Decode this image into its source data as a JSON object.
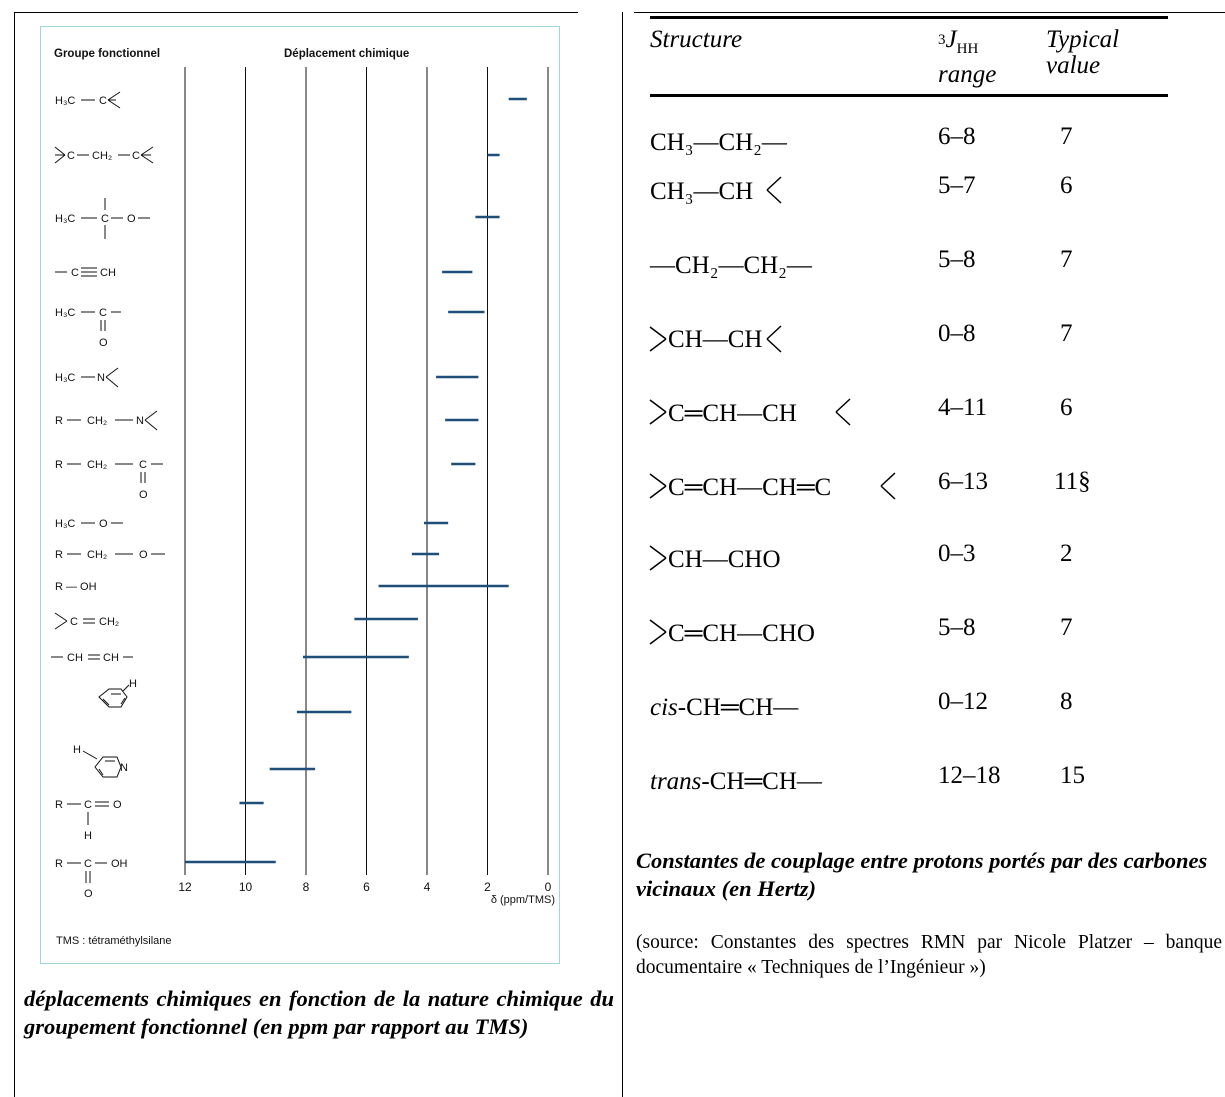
{
  "left": {
    "chart_data": {
      "type": "range-bar",
      "header_left": "Groupe fonctionnel",
      "header_right": "Déplacement chimique",
      "xaxis_label": "δ (ppm/TMS)",
      "xlim": [
        12,
        0
      ],
      "ticks": [
        "12",
        "10",
        "8",
        "6",
        "4",
        "2",
        "0"
      ],
      "tick_values": [
        12,
        10,
        8,
        6,
        4,
        2,
        0
      ],
      "footnote": "TMS : tétraméthylsilane",
      "bar_color": "#1f4e79",
      "rows": [
        {
          "group": "H3C—C<",
          "from": 1.3,
          "to": 0.7
        },
        {
          "group": ">C—CH2—C<",
          "from": 2.0,
          "to": 1.6
        },
        {
          "group": "H3C—C(|)—O—",
          "from": 2.4,
          "to": 1.6
        },
        {
          "group": "—C≡CH",
          "from": 3.5,
          "to": 2.5
        },
        {
          "group": "H3C—C(=O)—",
          "from": 3.3,
          "to": 2.1
        },
        {
          "group": "H3C—N<",
          "from": 3.7,
          "to": 2.3
        },
        {
          "group": "R—CH2—N<",
          "from": 3.4,
          "to": 2.3
        },
        {
          "group": "R—CH2—C(=O)—",
          "from": 3.2,
          "to": 2.4
        },
        {
          "group": "H3C—O—",
          "from": 4.1,
          "to": 3.3
        },
        {
          "group": "R—CH2—O—",
          "from": 4.5,
          "to": 3.6
        },
        {
          "group": "R—OH",
          "from": 5.6,
          "to": 1.3
        },
        {
          "group": ">C=CH2",
          "from": 6.4,
          "to": 4.3
        },
        {
          "group": "—CH=CH—",
          "from": 8.1,
          "to": 4.6
        },
        {
          "group": "benzène-H",
          "from": 8.3,
          "to": 6.5
        },
        {
          "group": "pyridine-H",
          "from": 9.2,
          "to": 7.7
        },
        {
          "group": "R—C(H)=O",
          "from": 10.2,
          "to": 9.4
        },
        {
          "group": "R—C(=O)—OH",
          "from": 12.0,
          "to": 9.0
        }
      ]
    },
    "labels": {
      "h3c": "H₃C",
      "c": "C",
      "o": "O",
      "n": "N",
      "r": "R",
      "h": "H",
      "oh": "OH",
      "ch": "CH",
      "ch2": "CH₂",
      "r_oh": "R — OH"
    },
    "caption": "déplacements chimiques en fonction de la nature chimique du groupement fonctionnel (en ppm par rapport au TMS)"
  },
  "right": {
    "table": {
      "headers": {
        "structure": "Structure",
        "range_sup": "3",
        "range_j": "J",
        "range_sub": "HH",
        "range_line2": "range",
        "typical_line1": "Typical",
        "typical_line2": "value"
      },
      "rows": [
        {
          "structure": "CH₃—CH₂—",
          "range": "6–8",
          "typical": "7"
        },
        {
          "structure": "CH₃—CH",
          "range": "5–7",
          "typical": "6"
        },
        {
          "structure": "—CH₂—CH₂—",
          "range": "5–8",
          "typical": "7"
        },
        {
          "structure": "CH—CH",
          "range": "0–8",
          "typical": "7"
        },
        {
          "structure": "C═CH—CH",
          "range": "4–11",
          "typical": "6"
        },
        {
          "structure": "C═CH—CH═C",
          "range": "6–13",
          "typical": "11§"
        },
        {
          "structure": "CH—CHO",
          "range": "0–3",
          "typical": "2"
        },
        {
          "structure": "C═CH—CHO",
          "range": "5–8",
          "typical": "7"
        },
        {
          "structure_italic": "cis",
          "structure": "-CH═CH—",
          "range": "0–12",
          "typical": "8"
        },
        {
          "structure_italic": "trans",
          "structure": "-CH═CH—",
          "range": "12–18",
          "typical": "15"
        }
      ]
    },
    "caption": "Constantes de couplage entre protons portés par des carbones vicinaux (en Hertz)",
    "source": "(source: Constantes des spectres RMN par Nicole Platzer – banque documentaire « Techniques de l’Ingénieur »)"
  }
}
